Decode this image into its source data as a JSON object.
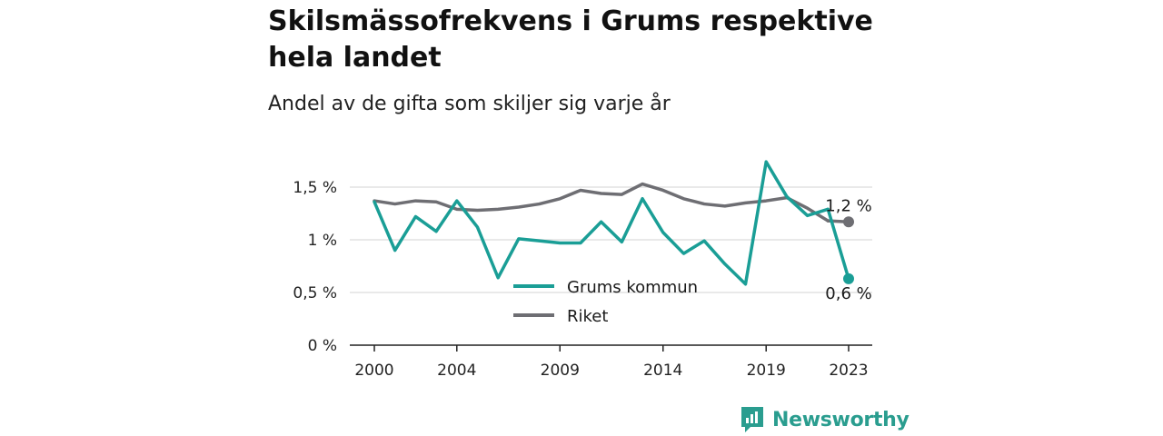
{
  "header": {
    "title": "Skilsmässofrekvens i Grums respektive hela landet",
    "subtitle": "Andel av de gifta som skiljer sig varje år"
  },
  "brand": {
    "name": "Newsworthy",
    "icon": "newsworthy-logo-icon",
    "color": "#2a9d8f"
  },
  "chart_data": {
    "type": "line",
    "title": "Skilsmässofrekvens i Grums respektive hela landet",
    "subtitle": "Andel av de gifta som skiljer sig varje år",
    "xlabel": "",
    "ylabel": "",
    "x": [
      2000,
      2001,
      2002,
      2003,
      2004,
      2005,
      2006,
      2007,
      2008,
      2009,
      2010,
      2011,
      2012,
      2013,
      2014,
      2015,
      2016,
      2017,
      2018,
      2019,
      2020,
      2021,
      2022,
      2023
    ],
    "x_ticks": [
      2000,
      2004,
      2009,
      2014,
      2019,
      2023
    ],
    "x_tick_labels": [
      "2000",
      "2004",
      "2009",
      "2014",
      "2019",
      "2023"
    ],
    "xlim": [
      2000,
      2023
    ],
    "ylim": [
      0,
      1.5
    ],
    "y_ticks": [
      0,
      0.5,
      1,
      1.5
    ],
    "y_tick_labels": [
      "0 %",
      "0,5 %",
      "1 %",
      "1,5 %"
    ],
    "grid": true,
    "legend_position": "bottom-center",
    "series": [
      {
        "name": "Grums kommun",
        "color": "#1a9e96",
        "values": [
          1.36,
          0.9,
          1.22,
          1.08,
          1.37,
          1.12,
          0.64,
          1.01,
          0.99,
          0.97,
          0.97,
          1.17,
          0.98,
          1.39,
          1.07,
          0.87,
          0.99,
          0.77,
          0.58,
          1.74,
          1.41,
          1.23,
          1.29,
          0.63
        ],
        "end_label": "0,6 %"
      },
      {
        "name": "Riket",
        "color": "#6e6e73",
        "values": [
          1.37,
          1.34,
          1.37,
          1.36,
          1.29,
          1.28,
          1.29,
          1.31,
          1.34,
          1.39,
          1.47,
          1.44,
          1.43,
          1.53,
          1.47,
          1.39,
          1.34,
          1.32,
          1.35,
          1.37,
          1.4,
          1.3,
          1.18,
          1.17
        ],
        "end_label": "1,2 %"
      }
    ]
  }
}
